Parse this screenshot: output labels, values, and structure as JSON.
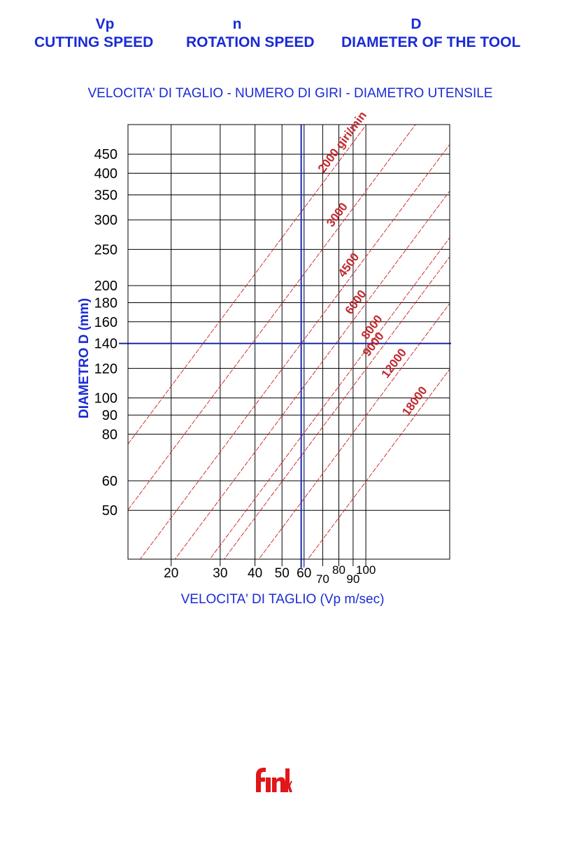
{
  "header": {
    "columns": [
      {
        "symbol": "Vp",
        "label": "CUTTING SPEED"
      },
      {
        "symbol": "n",
        "label": "ROTATION SPEED"
      },
      {
        "symbol": "D",
        "label": "DIAMETER OF THE TOOL"
      }
    ]
  },
  "logo": {
    "text": "fink",
    "color": "#e0161b"
  },
  "chart_data": {
    "type": "line",
    "title": "VELOCITA' DI TAGLIO - NUMERO DI GIRI - DIAMETRO UTENSILE",
    "xlabel": "VELOCITA' DI TAGLIO (Vp  m/sec)",
    "ylabel": "DIAMETRO D (mm)",
    "x_scale": "log",
    "y_scale": "log",
    "xlim": [
      14,
      200
    ],
    "ylim": [
      37,
      540
    ],
    "grid": true,
    "x_ticks": [
      {
        "value": 20,
        "label": "20"
      },
      {
        "value": 30,
        "label": "30"
      },
      {
        "value": 40,
        "label": "40"
      },
      {
        "value": 50,
        "label": "50"
      },
      {
        "value": 60,
        "label": "60"
      },
      {
        "value": 70,
        "label": "70"
      },
      {
        "value": 80,
        "label": "80"
      },
      {
        "value": 90,
        "label": "90"
      },
      {
        "value": 100,
        "label": "100"
      }
    ],
    "y_ticks": [
      {
        "value": 50,
        "label": "50"
      },
      {
        "value": 60,
        "label": "60"
      },
      {
        "value": 80,
        "label": "80"
      },
      {
        "value": 90,
        "label": "90"
      },
      {
        "value": 100,
        "label": "100"
      },
      {
        "value": 120,
        "label": "120"
      },
      {
        "value": 140,
        "label": "140"
      },
      {
        "value": 160,
        "label": "160"
      },
      {
        "value": 180,
        "label": "180"
      },
      {
        "value": 200,
        "label": "200"
      },
      {
        "value": 250,
        "label": "250"
      },
      {
        "value": 300,
        "label": "300"
      },
      {
        "value": 350,
        "label": "350"
      },
      {
        "value": 400,
        "label": "400"
      },
      {
        "value": 450,
        "label": "450"
      }
    ],
    "series": [
      {
        "name": "2000 giri/min",
        "rpm": 2000
      },
      {
        "name": "3000",
        "rpm": 3000
      },
      {
        "name": "4500",
        "rpm": 4500
      },
      {
        "name": "6000",
        "rpm": 6000
      },
      {
        "name": "8000",
        "rpm": 8000
      },
      {
        "name": "9000",
        "rpm": 9000
      },
      {
        "name": "12000",
        "rpm": 12000
      },
      {
        "name": "18000",
        "rpm": 18000
      }
    ],
    "example": {
      "diameter": 140,
      "speed": 58.6
    },
    "colors": {
      "grid": "#000000",
      "rpm_lines": "#cc1f1f",
      "rpm_labels": "#c0282d",
      "example_lines": "#1c2aa0",
      "axis_text": "#1a2bd6"
    }
  }
}
